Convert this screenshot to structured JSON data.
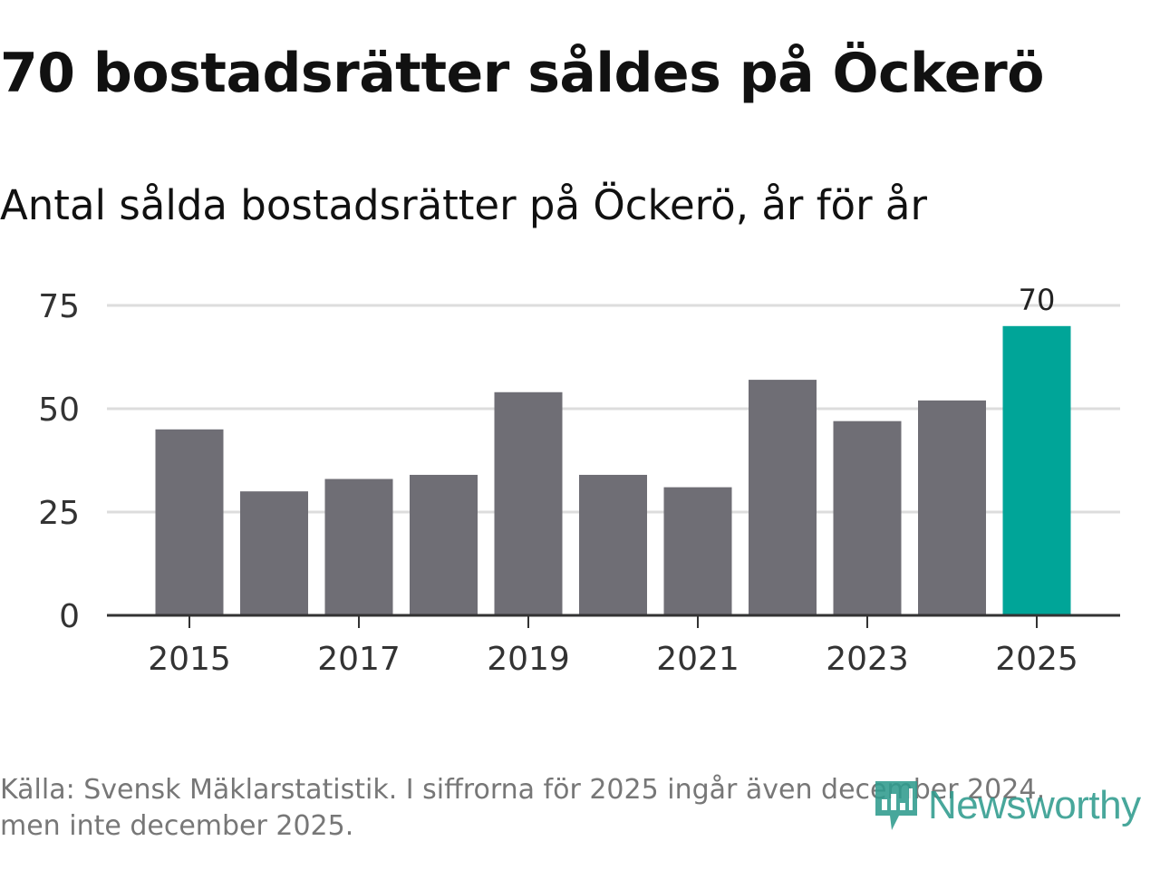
{
  "title": "70 bostadsrätter såldes på Öckerö",
  "subtitle": "Antal sålda bostadsrätter på Öckerö, år för år",
  "source": "Källa: Svensk Mäklarstatistik. I siffrorna för 2025 ingår även december 2024, men inte december 2025.",
  "logo": {
    "text": "Newsworthy",
    "icon": "bar-chart-bubble-icon"
  },
  "colors": {
    "bar": "#6f6e75",
    "highlight": "#00a598",
    "grid": "#dddddd",
    "axis": "#333333"
  },
  "chart_data": {
    "type": "bar",
    "title": "70 bostadsrätter såldes på Öckerö",
    "subtitle": "Antal sålda bostadsrätter på Öckerö, år för år",
    "xlabel": "",
    "ylabel": "",
    "categories": [
      "2015",
      "2016",
      "2017",
      "2018",
      "2019",
      "2020",
      "2021",
      "2022",
      "2023",
      "2024",
      "2025"
    ],
    "values": [
      45,
      30,
      33,
      34,
      54,
      34,
      31,
      57,
      47,
      52,
      70
    ],
    "highlight_category": "2025",
    "data_labels": [
      {
        "category": "2025",
        "text": "70"
      }
    ],
    "x_tick_labels": [
      "2015",
      "2017",
      "2019",
      "2021",
      "2023",
      "2025"
    ],
    "y_ticks": [
      0,
      25,
      50,
      75
    ],
    "ylim": [
      0,
      75
    ],
    "grid": true,
    "legend": "none"
  }
}
